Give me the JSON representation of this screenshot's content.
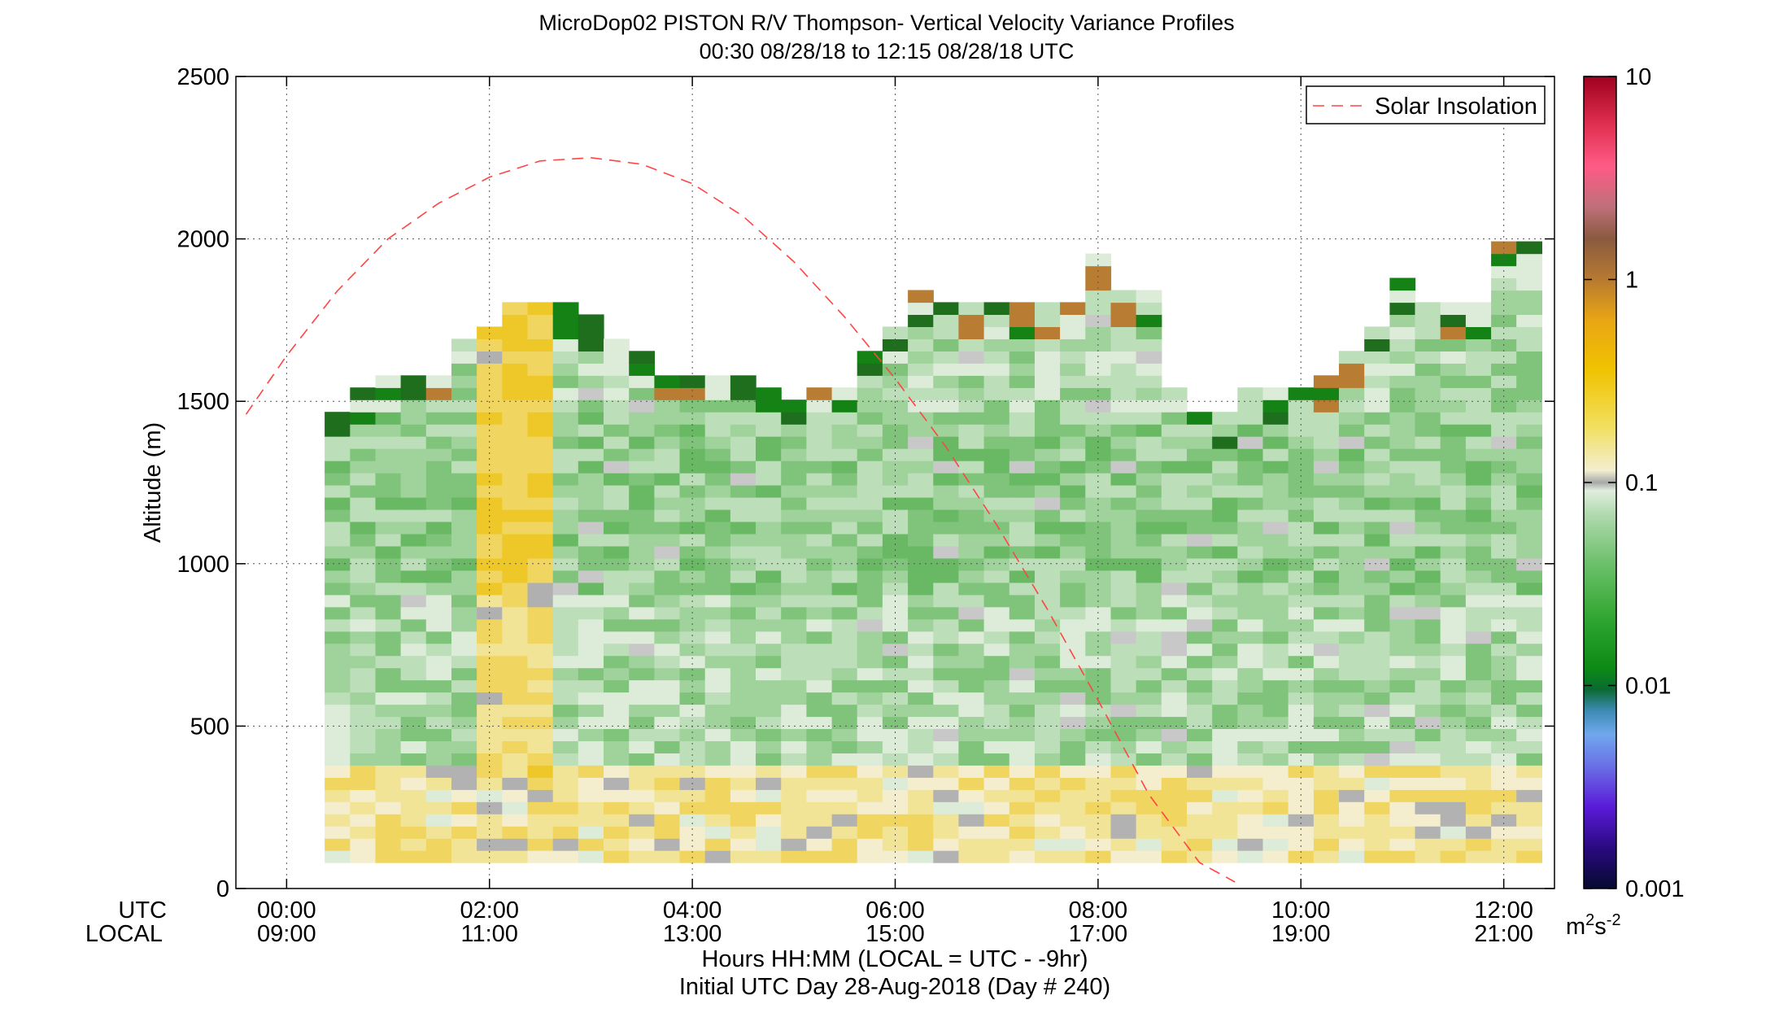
{
  "chart_data": {
    "type": "heatmap",
    "title": "MicroDop02 PISTON R/V Thompson- Vertical Velocity Variance Profiles",
    "subtitle": "00:30 08/28/18 to 12:15 08/28/18  UTC",
    "ylabel": "Altitude (m)",
    "xlabel": "Hours HH:MM  (LOCAL = UTC - -9hr)",
    "xlabel2": "Initial UTC Day 28-Aug-2018 (Day # 240)",
    "row_utc_label": "UTC",
    "row_local_label": "LOCAL",
    "xlim": [
      -0.5,
      12.5
    ],
    "ylim": [
      0,
      2500
    ],
    "grid": true,
    "legend_position": "top-right",
    "y_ticks": [
      "0",
      "500",
      "1000",
      "1500",
      "2000",
      "2500"
    ],
    "x_ticks_utc": [
      "00:00",
      "02:00",
      "04:00",
      "06:00",
      "08:00",
      "10:00",
      "12:00"
    ],
    "x_ticks_local": [
      "09:00",
      "11:00",
      "13:00",
      "15:00",
      "17:00",
      "19:00",
      "21:00"
    ],
    "colorbar": {
      "scale": "log",
      "range": [
        0.001,
        10
      ],
      "ticks": [
        "0.001",
        "0.01",
        "0.1",
        "1",
        "10"
      ],
      "units": "m",
      "units_sup1": "2",
      "units_mid": "s",
      "units_sup2": "-2"
    },
    "series": [
      {
        "name": "Solar Insolation",
        "style": "dashed",
        "color": "#ff4444",
        "peak_time_utc": 2.75,
        "peak_altitude": 2250,
        "x": [
          -0.4,
          0.0,
          0.5,
          1.0,
          1.5,
          2.0,
          2.5,
          3.0,
          3.5,
          4.0,
          4.5,
          5.0,
          5.5,
          6.0,
          6.5,
          7.0,
          7.5,
          8.0,
          8.5,
          9.0,
          9.35
        ],
        "y": [
          1460,
          1640,
          1840,
          2000,
          2110,
          2190,
          2240,
          2250,
          2230,
          2170,
          2070,
          1930,
          1760,
          1570,
          1360,
          1120,
          860,
          580,
          290,
          80,
          20
        ]
      }
    ],
    "heatmap": {
      "time_start": 0.5,
      "time_end": 12.25,
      "time_step": 0.25,
      "alt_step": 37.5,
      "top_profile": [
        [
          0.5,
          1450
        ],
        [
          0.75,
          1520
        ],
        [
          1.0,
          1580
        ],
        [
          1.25,
          1580
        ],
        [
          1.5,
          1580
        ],
        [
          1.75,
          1690
        ],
        [
          2.0,
          1720
        ],
        [
          2.25,
          1780
        ],
        [
          2.5,
          1780
        ],
        [
          2.75,
          1780
        ],
        [
          3.0,
          1750
        ],
        [
          3.25,
          1690
        ],
        [
          3.5,
          1650
        ],
        [
          3.75,
          1580
        ],
        [
          4.0,
          1580
        ],
        [
          4.25,
          1580
        ],
        [
          4.5,
          1580
        ],
        [
          4.75,
          1540
        ],
        [
          5.0,
          1490
        ],
        [
          5.25,
          1540
        ],
        [
          5.5,
          1540
        ],
        [
          5.75,
          1620
        ],
        [
          6.0,
          1720
        ],
        [
          6.25,
          1820
        ],
        [
          6.5,
          1800
        ],
        [
          6.75,
          1790
        ],
        [
          7.0,
          1790
        ],
        [
          7.25,
          1790
        ],
        [
          7.5,
          1780
        ],
        [
          7.75,
          1800
        ],
        [
          8.0,
          1950
        ],
        [
          8.25,
          1820
        ],
        [
          8.5,
          1820
        ],
        [
          8.75,
          1540
        ],
        [
          9.0,
          1440
        ],
        [
          9.25,
          1440
        ],
        [
          9.5,
          1510
        ],
        [
          9.75,
          1510
        ],
        [
          10.0,
          1510
        ],
        [
          10.25,
          1550
        ],
        [
          10.5,
          1620
        ],
        [
          10.75,
          1720
        ],
        [
          11.0,
          1850
        ],
        [
          11.25,
          1780
        ],
        [
          11.5,
          1780
        ],
        [
          11.75,
          1780
        ],
        [
          12.0,
          1990
        ],
        [
          12.25,
          1990
        ]
      ],
      "boundary_layer_top": 380,
      "convective_columns_utc": [
        2.0,
        2.25,
        2.5
      ],
      "values_legend": {
        "free_troposphere": 0.04,
        "boundary_layer": 0.25,
        "convective_columns": 0.3,
        "cloud_top_edges": 0.5
      }
    }
  }
}
